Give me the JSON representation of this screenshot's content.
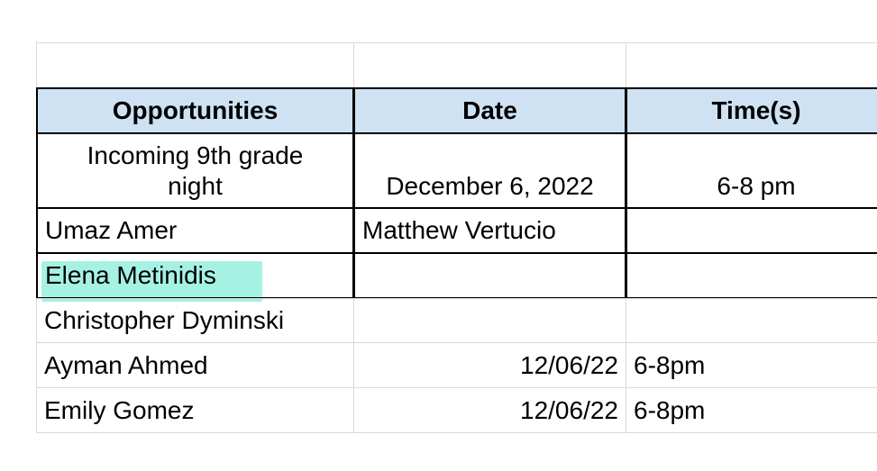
{
  "header": {
    "opportunities": "Opportunities",
    "date": "Date",
    "times": "Time(s)"
  },
  "event": {
    "name": "Incoming 9th grade night",
    "date": "December 6, 2022",
    "time": "6-8 pm"
  },
  "rows": [
    {
      "name": "Umaz Amer",
      "date": "Matthew Vertucio",
      "time": ""
    },
    {
      "name": "Elena Metinidis",
      "date": "",
      "time": "",
      "highlight": "#a6f2e2"
    },
    {
      "name": "Christopher Dyminski",
      "date": "",
      "time": ""
    },
    {
      "name": "Ayman Ahmed",
      "date": "12/06/22",
      "time": "6-8pm"
    },
    {
      "name": "Emily Gomez",
      "date": "12/06/22",
      "time": "6-8pm"
    }
  ],
  "colors": {
    "header_bg": "#cfe2f3",
    "highlight": "#a6f2e2"
  }
}
